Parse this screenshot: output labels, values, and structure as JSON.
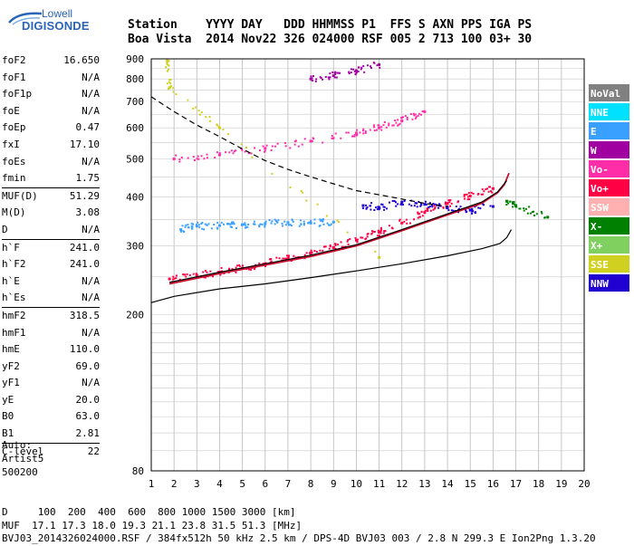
{
  "logo": {
    "line1": "Lowell",
    "line2": "DIGISONDE"
  },
  "header": {
    "row1": "Station    YYYY DAY   DDD HHMMSS P1  FFS S AXN PPS IGA PS",
    "row2": "Boa Vista  2014 Nov22 326 024000 RSF 005 2 713 100 03+ 30"
  },
  "params": [
    {
      "group": [
        {
          "name": "foF2",
          "value": "16.650"
        },
        {
          "name": "foF1",
          "value": "N/A"
        },
        {
          "name": "foF1p",
          "value": "N/A"
        },
        {
          "name": "foE",
          "value": "N/A"
        },
        {
          "name": "foEp",
          "value": "0.47"
        },
        {
          "name": "fxI",
          "value": "17.10"
        },
        {
          "name": "foEs",
          "value": "N/A"
        },
        {
          "name": "fmin",
          "value": "1.75"
        }
      ]
    },
    {
      "group": [
        {
          "name": "MUF(D)",
          "value": "51.29"
        },
        {
          "name": "M(D)",
          "value": "3.08"
        },
        {
          "name": "D",
          "value": "N/A"
        }
      ]
    },
    {
      "group": [
        {
          "name": "h`F",
          "value": "241.0"
        },
        {
          "name": "h`F2",
          "value": "241.0"
        },
        {
          "name": "h`E",
          "value": "N/A"
        },
        {
          "name": "h`Es",
          "value": "N/A"
        }
      ]
    },
    {
      "group": [
        {
          "name": "hmF2",
          "value": "318.5"
        },
        {
          "name": "hmF1",
          "value": "N/A"
        },
        {
          "name": "hmE",
          "value": "110.0"
        },
        {
          "name": "yF2",
          "value": "69.0"
        },
        {
          "name": "yF1",
          "value": "N/A"
        },
        {
          "name": "yE",
          "value": "20.0"
        },
        {
          "name": "B0",
          "value": "63.0"
        },
        {
          "name": "B1",
          "value": "2.81"
        }
      ]
    },
    {
      "group": [
        {
          "name": "C-level",
          "value": "22"
        }
      ]
    }
  ],
  "auto": {
    "line1": "Auto:",
    "line2": "Artist5",
    "line3": "500200"
  },
  "footer": {
    "line1": "D     100  200  400  600  800 1000 1500 3000 [km]",
    "line2": "MUF  17.1 17.3 18.0 19.3 21.1 23.8 31.5 51.3 [MHz]",
    "line3": "BVJ03_2014326024000.RSF / 384fx512h 50 kHz 2.5 km / DPS-4D BVJ03 003 / 2.8 N 299.3 E Ion2Png 1.3.20"
  },
  "legend": [
    {
      "label": "NoVal",
      "color": "#808080"
    },
    {
      "label": "NNE",
      "color": "#00e0ff"
    },
    {
      "label": "E",
      "color": "#3aa0ff"
    },
    {
      "label": "W",
      "color": "#a000a0"
    },
    {
      "label": "Vo-",
      "color": "#ff2ea8"
    },
    {
      "label": "Vo+",
      "color": "#ff0044"
    },
    {
      "label": "SSW",
      "color": "#ffb0b0"
    },
    {
      "label": "X-",
      "color": "#008000"
    },
    {
      "label": "X+",
      "color": "#80d060"
    },
    {
      "label": "SSE",
      "color": "#d0d020"
    },
    {
      "label": "NNW",
      "color": "#2000d0"
    }
  ],
  "chart_data": {
    "type": "scatter",
    "xlabel": "",
    "ylabel": "",
    "xlim": [
      1,
      20
    ],
    "ylim": [
      80,
      900
    ],
    "x_ticks": [
      1,
      2,
      3,
      4,
      5,
      6,
      7,
      8,
      9,
      10,
      11,
      12,
      13,
      14,
      15,
      16,
      17,
      18,
      19,
      20
    ],
    "y_ticks": [
      80,
      200,
      300,
      400,
      500,
      600,
      700,
      800,
      900
    ],
    "y_scale": "log",
    "grid": true,
    "series": [
      {
        "name": "Vo+",
        "points": [
          [
            1.8,
            247
          ],
          [
            3,
            252
          ],
          [
            4,
            257
          ],
          [
            5,
            263
          ],
          [
            6,
            270
          ],
          [
            7,
            278
          ],
          [
            8,
            287
          ],
          [
            9,
            297
          ],
          [
            10,
            310
          ],
          [
            11,
            325
          ],
          [
            12,
            343
          ],
          [
            13,
            365
          ],
          [
            14,
            385
          ],
          [
            15,
            402
          ],
          [
            16,
            420
          ]
        ]
      },
      {
        "name": "Vo-",
        "points": [
          [
            2,
            500
          ],
          [
            4,
            512
          ],
          [
            6,
            532
          ],
          [
            8,
            555
          ],
          [
            10,
            582
          ],
          [
            11,
            600
          ],
          [
            12,
            625
          ],
          [
            13,
            660
          ]
        ]
      },
      {
        "name": "W",
        "points": [
          [
            8,
            800
          ],
          [
            9,
            815
          ],
          [
            10,
            840
          ],
          [
            11,
            870
          ]
        ]
      },
      {
        "name": "E",
        "points": [
          [
            2.3,
            330
          ],
          [
            3,
            337
          ],
          [
            4,
            338
          ],
          [
            5,
            340
          ],
          [
            6,
            342
          ],
          [
            7,
            344
          ],
          [
            8,
            343
          ],
          [
            9,
            345
          ]
        ]
      },
      {
        "name": "NNW",
        "points": [
          [
            10.3,
            380
          ],
          [
            11,
            376
          ],
          [
            12,
            388
          ],
          [
            13,
            383
          ],
          [
            14,
            375
          ],
          [
            15,
            370
          ],
          [
            16,
            378
          ]
        ]
      },
      {
        "name": "X-",
        "points": [
          [
            16.6,
            390
          ],
          [
            17,
            380
          ],
          [
            18.4,
            355
          ]
        ]
      },
      {
        "name": "SSE",
        "points": [
          [
            1.7,
            890
          ],
          [
            1.8,
            760
          ],
          [
            4,
            600
          ],
          [
            11,
            280
          ]
        ]
      }
    ],
    "curves": [
      {
        "style": "solid-red",
        "points": [
          [
            1.8,
            240
          ],
          [
            4,
            255
          ],
          [
            6,
            268
          ],
          [
            8,
            282
          ],
          [
            10,
            300
          ],
          [
            12,
            328
          ],
          [
            14,
            360
          ],
          [
            15.5,
            385
          ],
          [
            16.2,
            410
          ],
          [
            16.5,
            430
          ],
          [
            16.7,
            460
          ]
        ]
      },
      {
        "style": "solid-black",
        "points": [
          [
            1.8,
            242
          ],
          [
            4,
            257
          ],
          [
            6,
            270
          ],
          [
            8,
            284
          ],
          [
            10,
            302
          ],
          [
            12,
            330
          ],
          [
            14,
            362
          ],
          [
            15.5,
            388
          ],
          [
            16.2,
            412
          ],
          [
            16.6,
            440
          ]
        ]
      },
      {
        "style": "solid-black-lower",
        "points": [
          [
            1,
            215
          ],
          [
            2,
            223
          ],
          [
            4,
            233
          ],
          [
            6,
            240
          ],
          [
            8,
            249
          ],
          [
            10,
            259
          ],
          [
            12,
            270
          ],
          [
            14,
            283
          ],
          [
            15.5,
            295
          ],
          [
            16.3,
            304
          ],
          [
            16.6,
            315
          ],
          [
            16.8,
            330
          ]
        ]
      },
      {
        "style": "dashed",
        "points": [
          [
            1,
            720
          ],
          [
            2,
            660
          ],
          [
            3,
            610
          ],
          [
            4,
            570
          ],
          [
            5,
            530
          ],
          [
            6,
            495
          ],
          [
            7,
            470
          ],
          [
            8,
            450
          ],
          [
            9,
            432
          ],
          [
            10,
            415
          ],
          [
            11,
            405
          ],
          [
            12,
            395
          ],
          [
            13,
            385
          ],
          [
            14,
            378
          ]
        ]
      }
    ]
  }
}
